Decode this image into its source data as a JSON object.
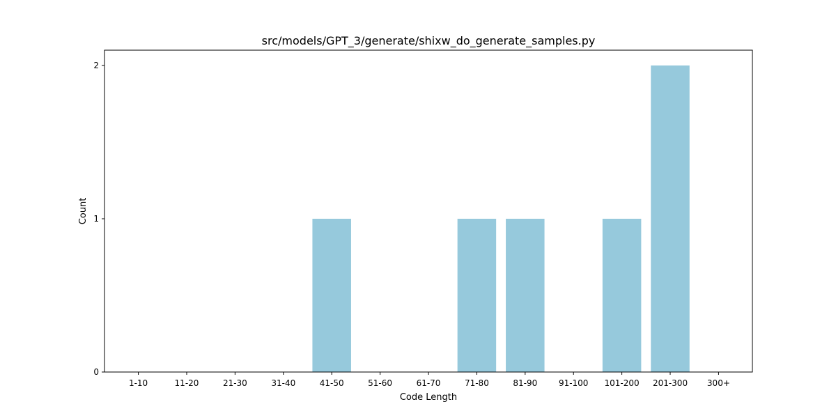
{
  "chart_data": {
    "type": "bar",
    "title": "src/models/GPT_3/generate/shixw_do_generate_samples.py",
    "xlabel": "Code Length",
    "ylabel": "Count",
    "categories": [
      "1-10",
      "11-20",
      "21-30",
      "31-40",
      "41-50",
      "51-60",
      "61-70",
      "71-80",
      "81-90",
      "91-100",
      "101-200",
      "201-300",
      "300+"
    ],
    "values": [
      0,
      0,
      0,
      0,
      1,
      0,
      0,
      1,
      1,
      0,
      1,
      2,
      0
    ],
    "yticks": [
      0,
      1,
      2
    ],
    "ylim": [
      0,
      2.1
    ],
    "grid": false,
    "bar_color": "#96c9dc"
  }
}
